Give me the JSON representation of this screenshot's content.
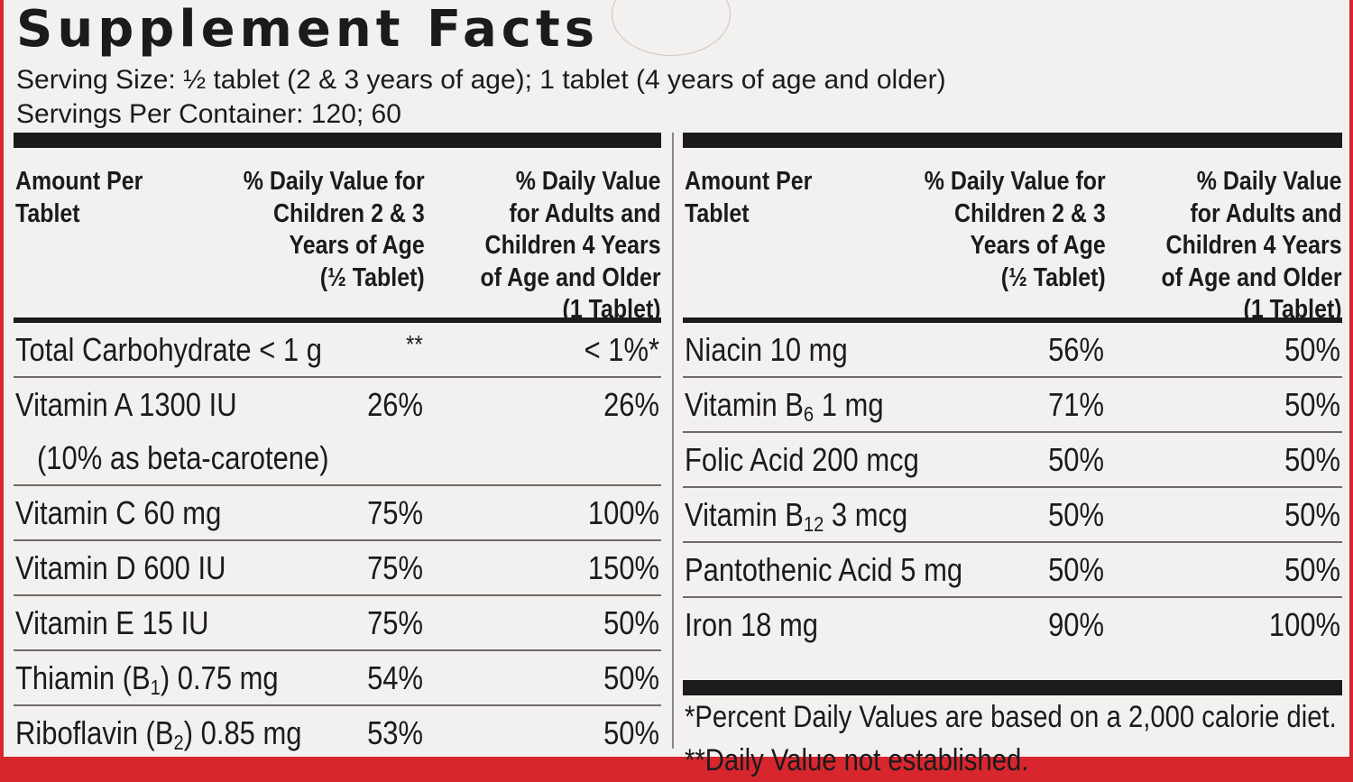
{
  "label": {
    "title": "Supplement Facts",
    "serving_size": "Serving Size: ½ tablet (2 & 3 years of age); 1 tablet (4 years of age and older)",
    "servings_per_container": "Servings Per Container: 120; 60"
  },
  "header": {
    "amount_per": "Amount Per\nTablet",
    "dv_children": "% Daily Value for\nChildren 2 & 3\nYears of Age\n(½ Tablet)",
    "dv_adults": "% Daily Value\nfor Adults and\nChildren 4 Years\nof Age and Older\n(1 Tablet)"
  },
  "left_rows": [
    {
      "name": "Total Carbohydrate < 1 g",
      "children": "**",
      "adults": "< 1%*"
    },
    {
      "name": "Vitamin A 1300 IU",
      "children": "26%",
      "adults": "26%",
      "note": "(10% as beta-carotene)"
    },
    {
      "name": "Vitamin C 60 mg",
      "children": "75%",
      "adults": "100%"
    },
    {
      "name": "Vitamin D 600 IU",
      "children": "75%",
      "adults": "150%"
    },
    {
      "name": "Vitamin E 15 IU",
      "children": "75%",
      "adults": "50%"
    },
    {
      "name_pre": "Thiamin (B",
      "name_sub": "1",
      "name_post": ") 0.75 mg",
      "children": "54%",
      "adults": "50%"
    },
    {
      "name_pre": "Riboflavin (B",
      "name_sub": "2",
      "name_post": ") 0.85 mg",
      "children": "53%",
      "adults": "50%"
    }
  ],
  "right_rows": [
    {
      "name": "Niacin 10 mg",
      "children": "56%",
      "adults": "50%"
    },
    {
      "name_pre": "Vitamin B",
      "name_sub": "6",
      "name_post": " 1 mg",
      "children": "71%",
      "adults": "50%"
    },
    {
      "name": "Folic Acid 200 mcg",
      "children": "50%",
      "adults": "50%"
    },
    {
      "name_pre": "Vitamin B",
      "name_sub": "12",
      "name_post": " 3 mcg",
      "children": "50%",
      "adults": "50%"
    },
    {
      "name": "Pantothenic Acid 5 mg",
      "children": "50%",
      "adults": "50%"
    },
    {
      "name": "Iron 18 mg",
      "children": "90%",
      "adults": "100%"
    }
  ],
  "footnotes": {
    "percent_dv": "*Percent Daily Values are based on a 2,000 calorie diet.",
    "not_established": "**Daily Value not established."
  },
  "colors": {
    "background": "#f3f1ef",
    "text": "#1c1a1b",
    "border": "#d8262e"
  }
}
